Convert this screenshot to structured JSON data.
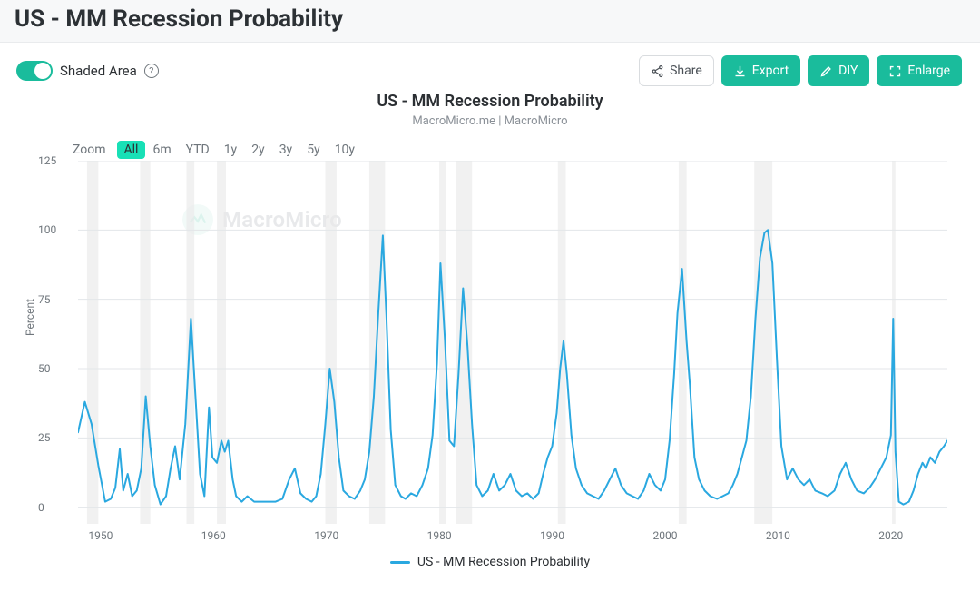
{
  "header": {
    "title": "US - MM Recession Probability"
  },
  "toggle": {
    "label": "Shaded Area",
    "on": true,
    "help_tooltip": "?"
  },
  "buttons": {
    "share": {
      "label": "Share"
    },
    "export": {
      "label": "Export"
    },
    "diy": {
      "label": "DIY"
    },
    "enlarge": {
      "label": "Enlarge"
    }
  },
  "chart": {
    "type": "line",
    "title": "US - MM Recession Probability",
    "subtitle": "MacroMicro.me | MacroMicro",
    "ylabel": "Percent",
    "line_color": "#2aa8e0",
    "line_width": 2,
    "background_color": "#ffffff",
    "grid_color": "#e3e6e9",
    "band_color": "#eaeaea",
    "band_opacity": 0.65,
    "xlim": [
      1948,
      2025
    ],
    "ylim": [
      -6,
      125
    ],
    "yticks": [
      0,
      25,
      50,
      75,
      100,
      125
    ],
    "xticks": [
      1950,
      1960,
      1970,
      1980,
      1990,
      2000,
      2010,
      2020
    ],
    "label_fontsize": 12,
    "title_fontsize": 18,
    "recession_bands": [
      [
        1948.8,
        1949.8
      ],
      [
        1953.5,
        1954.4
      ],
      [
        1957.6,
        1958.3
      ],
      [
        1960.3,
        1961.1
      ],
      [
        1969.9,
        1970.9
      ],
      [
        1973.8,
        1975.2
      ],
      [
        1980.0,
        1980.6
      ],
      [
        1981.5,
        1982.9
      ],
      [
        1990.5,
        1991.2
      ],
      [
        2001.2,
        2001.9
      ],
      [
        2007.9,
        2009.5
      ],
      [
        2020.1,
        2020.4
      ]
    ],
    "series": {
      "name": "US - MM Recession Probability",
      "points": [
        [
          1948.0,
          27
        ],
        [
          1948.6,
          38
        ],
        [
          1949.2,
          30
        ],
        [
          1949.8,
          15
        ],
        [
          1950.4,
          2
        ],
        [
          1950.9,
          3
        ],
        [
          1951.3,
          7
        ],
        [
          1951.7,
          21
        ],
        [
          1952.0,
          6
        ],
        [
          1952.4,
          12
        ],
        [
          1952.8,
          4
        ],
        [
          1953.2,
          6
        ],
        [
          1953.6,
          14
        ],
        [
          1954.0,
          40
        ],
        [
          1954.4,
          22
        ],
        [
          1954.8,
          8
        ],
        [
          1955.3,
          1
        ],
        [
          1955.8,
          4
        ],
        [
          1956.2,
          14
        ],
        [
          1956.6,
          22
        ],
        [
          1957.0,
          10
        ],
        [
          1957.5,
          30
        ],
        [
          1958.0,
          68
        ],
        [
          1958.4,
          40
        ],
        [
          1958.8,
          12
        ],
        [
          1959.2,
          4
        ],
        [
          1959.6,
          36
        ],
        [
          1959.9,
          18
        ],
        [
          1960.3,
          16
        ],
        [
          1960.7,
          24
        ],
        [
          1961.0,
          20
        ],
        [
          1961.3,
          24
        ],
        [
          1961.7,
          10
        ],
        [
          1962.0,
          4
        ],
        [
          1962.5,
          2
        ],
        [
          1963.0,
          4
        ],
        [
          1963.6,
          2
        ],
        [
          1964.2,
          2
        ],
        [
          1964.8,
          2
        ],
        [
          1965.5,
          2
        ],
        [
          1966.1,
          3
        ],
        [
          1966.7,
          10
        ],
        [
          1967.2,
          14
        ],
        [
          1967.7,
          5
        ],
        [
          1968.2,
          3
        ],
        [
          1968.7,
          2
        ],
        [
          1969.1,
          4
        ],
        [
          1969.5,
          12
        ],
        [
          1969.9,
          30
        ],
        [
          1970.3,
          50
        ],
        [
          1970.7,
          38
        ],
        [
          1971.1,
          18
        ],
        [
          1971.5,
          6
        ],
        [
          1972.0,
          4
        ],
        [
          1972.5,
          3
        ],
        [
          1973.0,
          6
        ],
        [
          1973.4,
          10
        ],
        [
          1973.8,
          20
        ],
        [
          1974.2,
          40
        ],
        [
          1974.6,
          70
        ],
        [
          1975.0,
          98
        ],
        [
          1975.3,
          70
        ],
        [
          1975.7,
          28
        ],
        [
          1976.1,
          8
        ],
        [
          1976.6,
          4
        ],
        [
          1977.0,
          3
        ],
        [
          1977.5,
          5
        ],
        [
          1978.0,
          4
        ],
        [
          1978.5,
          8
        ],
        [
          1979.0,
          14
        ],
        [
          1979.4,
          26
        ],
        [
          1979.8,
          52
        ],
        [
          1980.1,
          88
        ],
        [
          1980.5,
          60
        ],
        [
          1980.9,
          24
        ],
        [
          1981.3,
          22
        ],
        [
          1981.7,
          48
        ],
        [
          1982.1,
          79
        ],
        [
          1982.5,
          58
        ],
        [
          1982.9,
          30
        ],
        [
          1983.3,
          8
        ],
        [
          1983.8,
          4
        ],
        [
          1984.3,
          6
        ],
        [
          1984.8,
          12
        ],
        [
          1985.3,
          6
        ],
        [
          1985.8,
          8
        ],
        [
          1986.3,
          12
        ],
        [
          1986.8,
          6
        ],
        [
          1987.3,
          4
        ],
        [
          1987.8,
          5
        ],
        [
          1988.3,
          3
        ],
        [
          1988.8,
          5
        ],
        [
          1989.2,
          12
        ],
        [
          1989.6,
          18
        ],
        [
          1990.0,
          22
        ],
        [
          1990.4,
          34
        ],
        [
          1990.7,
          50
        ],
        [
          1991.0,
          60
        ],
        [
          1991.3,
          48
        ],
        [
          1991.7,
          26
        ],
        [
          1992.1,
          14
        ],
        [
          1992.6,
          8
        ],
        [
          1993.1,
          5
        ],
        [
          1993.6,
          4
        ],
        [
          1994.1,
          3
        ],
        [
          1994.6,
          6
        ],
        [
          1995.1,
          10
        ],
        [
          1995.6,
          14
        ],
        [
          1996.1,
          8
        ],
        [
          1996.6,
          5
        ],
        [
          1997.1,
          4
        ],
        [
          1997.6,
          3
        ],
        [
          1998.1,
          6
        ],
        [
          1998.6,
          12
        ],
        [
          1999.1,
          8
        ],
        [
          1999.6,
          6
        ],
        [
          2000.0,
          10
        ],
        [
          2000.4,
          24
        ],
        [
          2000.8,
          48
        ],
        [
          2001.1,
          70
        ],
        [
          2001.5,
          86
        ],
        [
          2001.9,
          60
        ],
        [
          2002.2,
          44
        ],
        [
          2002.6,
          18
        ],
        [
          2003.0,
          10
        ],
        [
          2003.5,
          6
        ],
        [
          2004.0,
          4
        ],
        [
          2004.6,
          3
        ],
        [
          2005.1,
          4
        ],
        [
          2005.6,
          5
        ],
        [
          2006.0,
          8
        ],
        [
          2006.4,
          12
        ],
        [
          2006.8,
          18
        ],
        [
          2007.2,
          24
        ],
        [
          2007.6,
          40
        ],
        [
          2008.0,
          68
        ],
        [
          2008.4,
          90
        ],
        [
          2008.8,
          99
        ],
        [
          2009.1,
          100
        ],
        [
          2009.5,
          88
        ],
        [
          2009.9,
          54
        ],
        [
          2010.3,
          22
        ],
        [
          2010.8,
          10
        ],
        [
          2011.3,
          14
        ],
        [
          2011.8,
          10
        ],
        [
          2012.3,
          8
        ],
        [
          2012.8,
          10
        ],
        [
          2013.3,
          6
        ],
        [
          2013.9,
          5
        ],
        [
          2014.4,
          4
        ],
        [
          2015.0,
          6
        ],
        [
          2015.5,
          12
        ],
        [
          2016.0,
          16
        ],
        [
          2016.5,
          10
        ],
        [
          2017.0,
          6
        ],
        [
          2017.6,
          5
        ],
        [
          2018.1,
          7
        ],
        [
          2018.6,
          10
        ],
        [
          2019.1,
          14
        ],
        [
          2019.6,
          18
        ],
        [
          2020.0,
          26
        ],
        [
          2020.2,
          68
        ],
        [
          2020.4,
          20
        ],
        [
          2020.7,
          2
        ],
        [
          2021.1,
          1
        ],
        [
          2021.6,
          2
        ],
        [
          2022.0,
          6
        ],
        [
          2022.4,
          12
        ],
        [
          2022.8,
          16
        ],
        [
          2023.1,
          14
        ],
        [
          2023.5,
          18
        ],
        [
          2023.9,
          16
        ],
        [
          2024.3,
          20
        ],
        [
          2024.7,
          22
        ],
        [
          2025.0,
          24
        ]
      ]
    }
  },
  "zoom": {
    "label": "Zoom",
    "options": [
      "All",
      "6m",
      "YTD",
      "1y",
      "2y",
      "3y",
      "5y",
      "10y"
    ],
    "active": "All"
  },
  "legend": {
    "label": "US - MM Recession Probability"
  },
  "watermark": {
    "text": "MacroMicro"
  },
  "colors": {
    "accent": "#1abc9c",
    "button_border": "#d9dcdf"
  }
}
